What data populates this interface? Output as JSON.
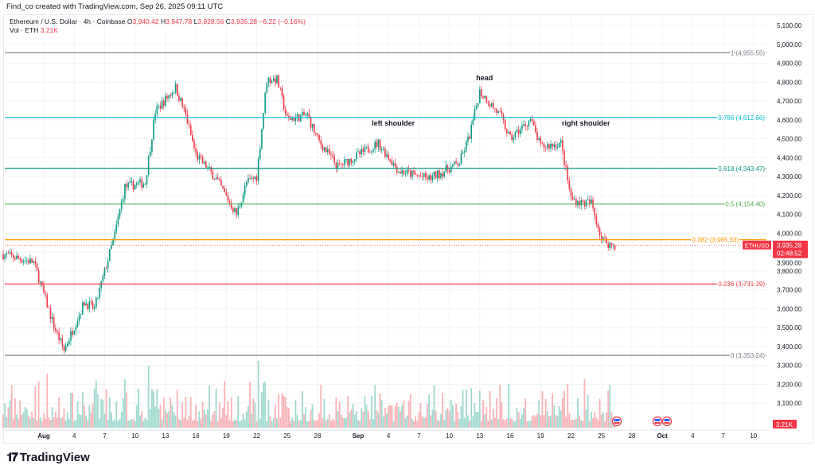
{
  "credit": "Find_co created with TradingView.com, Sep 26, 2025 09:11 UTC",
  "legend": {
    "symbol": "Ethereum / U.S. Dollar · 4h · Coinbase",
    "o_label": "O",
    "o": "3,940.42",
    "h_label": "H",
    "h": "3,947.78",
    "l_label": "L",
    "l": "3,928.56",
    "c_label": "C",
    "c": "3,935.28",
    "change": "−6.22 (−0.16%)",
    "vol_label": "Vol · ETH",
    "vol": "3.21K"
  },
  "price_tag": {
    "symbol": "ETHUSD",
    "price": "3,935.28",
    "countdown": "02:48:52"
  },
  "volume_tag": "3.21K",
  "colors": {
    "up": "#089981",
    "down": "#f23645",
    "vol_up": "#9fd9cf",
    "vol_down": "#f9b2b6"
  },
  "logo": "TradingView",
  "chart_data": {
    "type": "candlestick",
    "timeframe": "4h",
    "ylim": [
      3000,
      5100
    ],
    "y_ticks": [
      "3,100.00",
      "3,200.00",
      "3,300.00",
      "3,400.00",
      "3,500.00",
      "3,600.00",
      "3,700.00",
      "3,800.00",
      "3,900.00",
      "4,000.00",
      "4,100.00",
      "4,200.00",
      "4,300.00",
      "4,400.00",
      "4,500.00",
      "4,600.00",
      "4,700.00",
      "4,800.00",
      "4,900.00",
      "5,000.00",
      "5,100.00"
    ],
    "x_ticks": [
      {
        "label": "Aug",
        "date": "2025-08-01",
        "bold": true
      },
      {
        "label": "4",
        "date": "2025-08-04"
      },
      {
        "label": "7",
        "date": "2025-08-07"
      },
      {
        "label": "10",
        "date": "2025-08-10"
      },
      {
        "label": "13",
        "date": "2025-08-13"
      },
      {
        "label": "16",
        "date": "2025-08-16"
      },
      {
        "label": "19",
        "date": "2025-08-19"
      },
      {
        "label": "22",
        "date": "2025-08-22"
      },
      {
        "label": "25",
        "date": "2025-08-25"
      },
      {
        "label": "28",
        "date": "2025-08-28"
      },
      {
        "label": "Sep",
        "date": "2025-09-01",
        "bold": true
      },
      {
        "label": "4",
        "date": "2025-09-04"
      },
      {
        "label": "7",
        "date": "2025-09-07"
      },
      {
        "label": "10",
        "date": "2025-09-10"
      },
      {
        "label": "13",
        "date": "2025-09-13"
      },
      {
        "label": "16",
        "date": "2025-09-16"
      },
      {
        "label": "19",
        "date": "2025-09-19"
      },
      {
        "label": "22",
        "date": "2025-09-22"
      },
      {
        "label": "25",
        "date": "2025-09-25"
      },
      {
        "label": "28",
        "date": "2025-09-28"
      },
      {
        "label": "Oct",
        "date": "2025-10-01",
        "bold": true
      },
      {
        "label": "4",
        "date": "2025-10-04"
      },
      {
        "label": "7",
        "date": "2025-10-07"
      },
      {
        "label": "10",
        "date": "2025-10-10"
      }
    ],
    "price_path": [
      [
        "2025-07-28",
        3888
      ],
      [
        "2025-07-31",
        3846
      ],
      [
        "2025-08-02",
        3509
      ],
      [
        "2025-08-03",
        3380
      ],
      [
        "2025-08-05",
        3635
      ],
      [
        "2025-08-06",
        3600
      ],
      [
        "2025-08-08",
        3993
      ],
      [
        "2025-08-09",
        4246
      ],
      [
        "2025-08-11",
        4267
      ],
      [
        "2025-08-12",
        4645
      ],
      [
        "2025-08-14",
        4772
      ],
      [
        "2025-08-15",
        4624
      ],
      [
        "2025-08-16",
        4414
      ],
      [
        "2025-08-18",
        4288
      ],
      [
        "2025-08-20",
        4100
      ],
      [
        "2025-08-21",
        4267
      ],
      [
        "2025-08-22",
        4300
      ],
      [
        "2025-08-23",
        4814
      ],
      [
        "2025-08-24",
        4814
      ],
      [
        "2025-08-25",
        4603
      ],
      [
        "2025-08-27",
        4624
      ],
      [
        "2025-08-28",
        4498
      ],
      [
        "2025-08-30",
        4351
      ],
      [
        "2025-09-03",
        4477
      ],
      [
        "2025-09-05",
        4330
      ],
      [
        "2025-09-08",
        4288
      ],
      [
        "2025-09-11",
        4372
      ],
      [
        "2025-09-12",
        4519
      ],
      [
        "2025-09-13",
        4751
      ],
      [
        "2025-09-15",
        4624
      ],
      [
        "2025-09-16",
        4498
      ],
      [
        "2025-09-18",
        4603
      ],
      [
        "2025-09-19",
        4456
      ],
      [
        "2025-09-21",
        4477
      ],
      [
        "2025-09-22",
        4183
      ],
      [
        "2025-09-23",
        4161
      ],
      [
        "2025-09-24",
        4161
      ],
      [
        "2025-09-25",
        3972
      ],
      [
        "2025-09-26",
        3935
      ]
    ],
    "fib_levels": [
      {
        "label": "1 (4,955.55)",
        "value": 4955.55,
        "color": "#787b86"
      },
      {
        "label": "0.786 (4,612.66)",
        "value": 4612.66,
        "color": "#00bcd4"
      },
      {
        "label": "0.618 (4,343.47)",
        "value": 4343.47,
        "color": "#089981"
      },
      {
        "label": "0.5 (4,154.40)",
        "value": 4154.4,
        "color": "#4caf50"
      },
      {
        "label": "0.382 (3,965.33)",
        "value": 3965.33,
        "color": "#ff9800"
      },
      {
        "label": "0.236 (3,731.39)",
        "value": 3731.39,
        "color": "#f23645"
      },
      {
        "label": "0 (3,353.24)",
        "value": 3353.24,
        "color": "#787b86"
      }
    ],
    "annotations": [
      {
        "text": "left shoulder",
        "date": "2025-09-04",
        "price": 4570
      },
      {
        "text": "head",
        "date": "2025-09-13",
        "price": 4810
      },
      {
        "text": "right shoulder",
        "date": "2025-09-23",
        "price": 4570
      }
    ]
  }
}
